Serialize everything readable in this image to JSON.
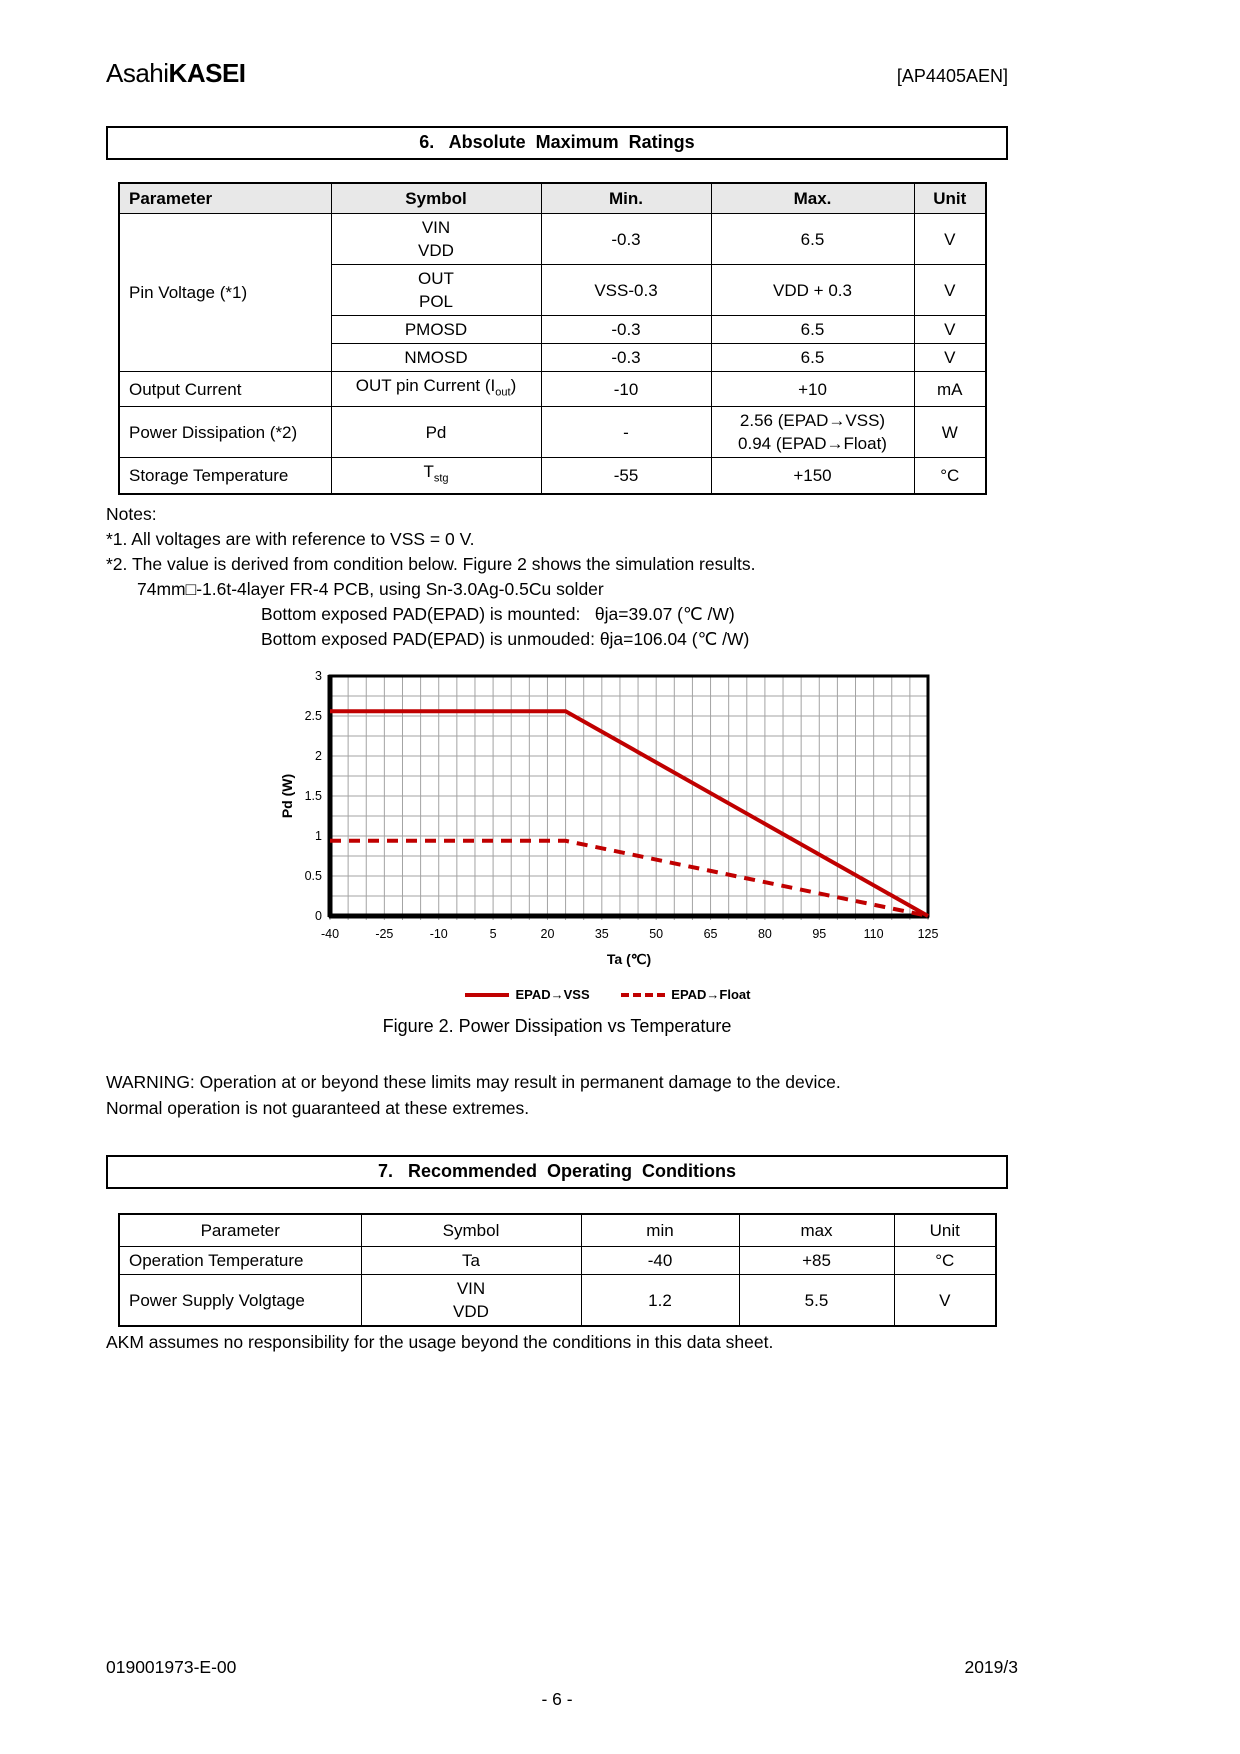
{
  "header": {
    "logo_light": "Asahi",
    "logo_bold": "KASEI",
    "doc_id": "[AP4405AEN]"
  },
  "section6": {
    "title": "6.   Absolute  Maximum  Ratings",
    "table": {
      "headers": [
        "Parameter",
        "Symbol",
        "Min.",
        "Max.",
        "Unit"
      ],
      "pin_voltage": {
        "param": "Pin Voltage (*1)",
        "r1": {
          "sym_l1": "VIN",
          "sym_l2": "VDD",
          "min": "-0.3",
          "max": "6.5",
          "unit": "V"
        },
        "r2": {
          "sym_l1": "OUT",
          "sym_l2": "POL",
          "min": "VSS-0.3",
          "max": "VDD + 0.3",
          "unit": "V"
        },
        "r3": {
          "sym": "PMOSD",
          "min": "-0.3",
          "max": "6.5",
          "unit": "V"
        },
        "r4": {
          "sym": "NMOSD",
          "min": "-0.3",
          "max": "6.5",
          "unit": "V"
        }
      },
      "output_current": {
        "param": "Output Current",
        "sym_pre": "OUT pin Current (I",
        "sym_sub": "out",
        "sym_suf": ")",
        "min": "-10",
        "max": "+10",
        "unit": "mA"
      },
      "power_dissipation": {
        "param": "Power Dissipation (*2)",
        "sym": "Pd",
        "min": "-",
        "max_l1": "2.56 (EPAD→VSS)",
        "max_l2": "0.94 (EPAD→Float)",
        "unit": "W"
      },
      "storage_temperature": {
        "param": "Storage Temperature",
        "sym_pre": "T",
        "sym_sub": "stg",
        "min": "-55",
        "max": "+150",
        "unit": "°C"
      }
    },
    "notes": {
      "label": "Notes:",
      "note1": "*1. All voltages are with reference to VSS = 0 V.",
      "note2": "*2. The value is derived from condition below. Figure 2 shows the simulation results.",
      "note2_line2": "74mm□-1.6t-4layer FR-4 PCB, using Sn-3.0Ag-0.5Cu solder",
      "note2_line3": "Bottom exposed PAD(EPAD) is mounted:   θja=39.07 (℃ /W)",
      "note2_line4": "Bottom exposed PAD(EPAD) is unmouded: θja=106.04 (℃ /W)"
    },
    "figure_caption": "Figure 2. Power Dissipation vs Temperature",
    "warning_line1": "WARNING: Operation at or beyond these limits may result in permanent damage to the device.",
    "warning_line2": "Normal operation is not guaranteed at these extremes."
  },
  "chart_data": {
    "type": "line",
    "title": "Figure 2. Power Dissipation vs Temperature",
    "xlabel": "Ta (℃)",
    "ylabel": "Pd (W)",
    "xlim": [
      -40,
      125
    ],
    "ylim": [
      0,
      3
    ],
    "x_ticks": [
      -40,
      -25,
      -10,
      5,
      20,
      35,
      50,
      65,
      80,
      95,
      110,
      125
    ],
    "y_ticks": [
      0,
      0.5,
      1,
      1.5,
      2,
      2.5,
      3
    ],
    "x_minor_step": 5,
    "y_minor_step": 0.25,
    "grid": true,
    "legend_position": "bottom",
    "line_color": "#c00000",
    "series": [
      {
        "name": "EPAD→VSS",
        "style": "solid",
        "points": [
          [
            -40,
            2.56
          ],
          [
            25,
            2.56
          ],
          [
            125,
            0
          ]
        ]
      },
      {
        "name": "EPAD→Float",
        "style": "dashed",
        "points": [
          [
            -40,
            0.94
          ],
          [
            25,
            0.94
          ],
          [
            125,
            0
          ]
        ]
      }
    ]
  },
  "section7": {
    "title": "7.   Recommended  Operating  Conditions",
    "table": {
      "headers": [
        "Parameter",
        "Symbol",
        "min",
        "max",
        "Unit"
      ],
      "r1": {
        "param": "Operation Temperature",
        "sym": "Ta",
        "min": "-40",
        "max": "+85",
        "unit": "°C"
      },
      "r2": {
        "param": "Power Supply Volgtage",
        "sym_l1": "VIN",
        "sym_l2": "VDD",
        "min": "1.2",
        "max": "5.5",
        "unit": "V"
      }
    },
    "note": "AKM assumes no responsibility for the usage beyond the conditions in this data sheet."
  },
  "footer": {
    "doc_number": "019001973-E-00",
    "date": "2019/3",
    "page_number": "- 6 -"
  }
}
